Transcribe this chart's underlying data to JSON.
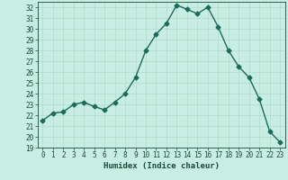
{
  "x": [
    0,
    1,
    2,
    3,
    4,
    5,
    6,
    7,
    8,
    9,
    10,
    11,
    12,
    13,
    14,
    15,
    16,
    17,
    18,
    19,
    20,
    21,
    22,
    23
  ],
  "y": [
    21.5,
    22.2,
    22.3,
    23.0,
    23.2,
    22.8,
    22.5,
    23.2,
    24.0,
    25.5,
    28.0,
    29.5,
    30.5,
    32.2,
    31.8,
    31.4,
    32.0,
    30.2,
    28.0,
    26.5,
    25.5,
    23.5,
    20.5,
    19.5
  ],
  "title": "",
  "xlabel": "Humidex (Indice chaleur)",
  "ylabel": "",
  "ylim": [
    19,
    32.5
  ],
  "xlim": [
    -0.5,
    23.5
  ],
  "yticks": [
    19,
    20,
    21,
    22,
    23,
    24,
    25,
    26,
    27,
    28,
    29,
    30,
    31,
    32
  ],
  "xticks": [
    0,
    1,
    2,
    3,
    4,
    5,
    6,
    7,
    8,
    9,
    10,
    11,
    12,
    13,
    14,
    15,
    16,
    17,
    18,
    19,
    20,
    21,
    22,
    23
  ],
  "line_color": "#1a6b5a",
  "bg_color": "#c8ede3",
  "grid_color": "#b0d9cc",
  "font_family": "monospace",
  "tick_color": "#1a4a3a",
  "tick_fontsize": 5.5,
  "xlabel_fontsize": 6.5,
  "marker": "D",
  "markersize": 2.5,
  "linewidth": 1.0
}
